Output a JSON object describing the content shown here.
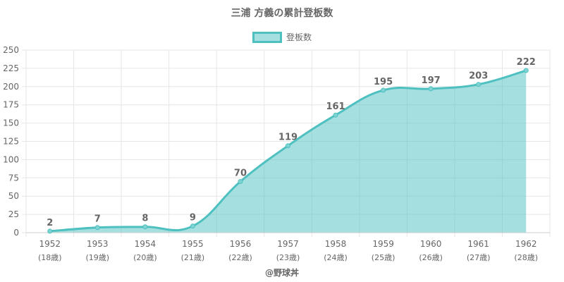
{
  "chart_data": {
    "type": "area",
    "title": "三浦 方義の累計登板数",
    "legend": {
      "label": "登板数",
      "position": "top-center"
    },
    "x": [
      "1952",
      "1953",
      "1954",
      "1955",
      "1956",
      "1957",
      "1958",
      "1959",
      "1960",
      "1961",
      "1962"
    ],
    "x_sub": [
      "(18歳)",
      "(19歳)",
      "(20歳)",
      "(21歳)",
      "(22歳)",
      "(23歳)",
      "(24歳)",
      "(25歳)",
      "(26歳)",
      "(27歳)",
      "(28歳)"
    ],
    "series": [
      {
        "name": "登板数",
        "values": [
          2,
          7,
          8,
          9,
          70,
          119,
          161,
          195,
          197,
          203,
          222
        ]
      }
    ],
    "ylim": [
      0,
      250
    ],
    "yticks": [
      0,
      25,
      50,
      75,
      100,
      125,
      150,
      175,
      200,
      225,
      250
    ],
    "grid": true,
    "colors": {
      "line": "#4ec0c0",
      "fill": "rgba(78,192,192,0.5)",
      "grid": "#e6e6e6",
      "text": "#666666"
    }
  },
  "credit": "@野球丼"
}
